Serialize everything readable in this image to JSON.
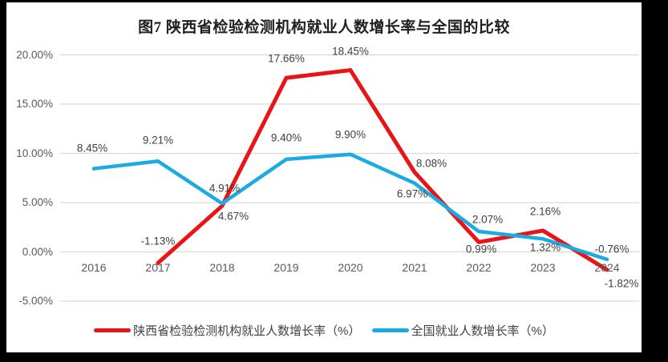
{
  "title": "图7 陕西省检验检测机构就业人数增长率与全国的比较",
  "colors": {
    "red_series": "#e81416",
    "blue_series": "#1babe2",
    "gridline": "#d9d9d9",
    "axis_text": "#595959",
    "data_label_text": "#3f3f3f",
    "title_text": "#1f1f1f",
    "frame": "#000000",
    "panel": "#ffffff"
  },
  "chart_data": {
    "type": "line",
    "title": "图7 陕西省检验检测机构就业人数增长率与全国的比较",
    "categories": [
      "2016",
      "2017",
      "2018",
      "2019",
      "2020",
      "2021",
      "2022",
      "2023",
      "2024"
    ],
    "series": [
      {
        "name": "陕西省检验检测机构就业人数增长率（%）",
        "color": "#e81416",
        "stroke_width": 5,
        "values": [
          null,
          -1.13,
          4.67,
          17.66,
          18.45,
          8.08,
          0.99,
          2.16,
          -1.82
        ],
        "labels": [
          null,
          "-1.13%",
          "4.67%",
          "17.66%",
          "18.45%",
          "8.08%",
          "0.99%",
          "2.16%",
          "-1.82%"
        ],
        "label_offsets": [
          null,
          [
            0,
            -27
          ],
          [
            14,
            13
          ],
          [
            0,
            -24
          ],
          [
            0,
            -24
          ],
          [
            21,
            -11
          ],
          [
            3,
            9
          ],
          [
            3,
            -24
          ],
          [
            18,
            17
          ]
        ]
      },
      {
        "name": "全国就业人数增长率（%）",
        "color": "#1babe2",
        "stroke_width": 4.5,
        "values": [
          8.45,
          9.21,
          4.91,
          9.4,
          9.9,
          6.97,
          2.07,
          1.32,
          -0.76
        ],
        "labels": [
          "8.45%",
          "9.21%",
          "4.91%",
          "9.40%",
          "9.90%",
          "6.97%",
          "2.07%",
          "1.32%",
          "-0.76%"
        ],
        "label_offsets": [
          [
            -2,
            -26
          ],
          [
            0,
            -26
          ],
          [
            3,
            -19
          ],
          [
            0,
            -27
          ],
          [
            0,
            -25
          ],
          [
            -3,
            13
          ],
          [
            11,
            -15
          ],
          [
            3,
            11
          ],
          [
            6,
            -13
          ]
        ]
      }
    ],
    "y_ticks": [
      {
        "label": "20.00%",
        "value": 20
      },
      {
        "label": "15.00%",
        "value": 15
      },
      {
        "label": "10.00%",
        "value": 10
      },
      {
        "label": "5.00%",
        "value": 5
      },
      {
        "label": "0.00%",
        "value": 0
      },
      {
        "label": "-5.00%",
        "value": -5
      }
    ],
    "ylim": [
      -5,
      20
    ],
    "grid": true,
    "legend_position": "bottom",
    "data_label_format": "0.00%"
  }
}
